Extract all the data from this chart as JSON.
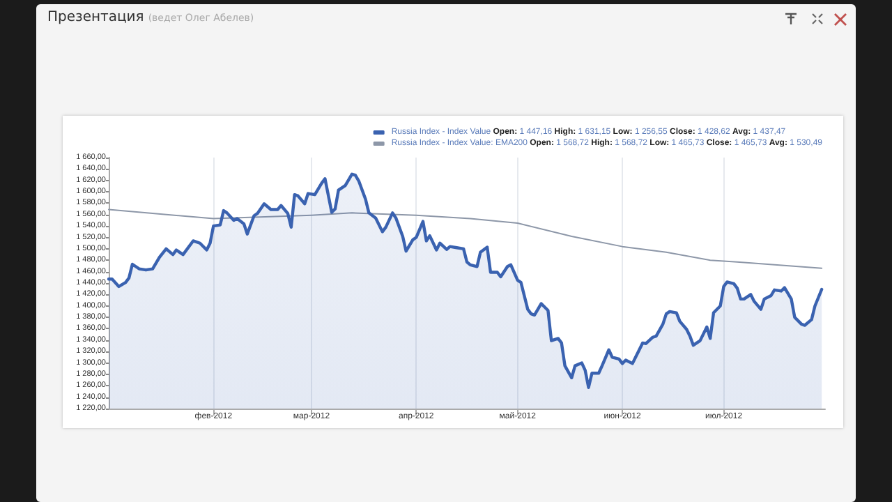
{
  "chart_data": {
    "type": "line",
    "title": "Презентация",
    "subtitle": "(ведет Олег Абелев)",
    "xlim": [
      "2012-01-01",
      "2012-07-31"
    ],
    "xticks": [
      {
        "value": "2012-02-01",
        "label": "фев-2012"
      },
      {
        "value": "2012-03-01",
        "label": "мар-2012"
      },
      {
        "value": "2012-04-01",
        "label": "апр-2012"
      },
      {
        "value": "2012-05-01",
        "label": "май-2012"
      },
      {
        "value": "2012-06-01",
        "label": "июн-2012"
      },
      {
        "value": "2012-07-01",
        "label": "июл-2012"
      }
    ],
    "ylim": [
      1220,
      1660
    ],
    "yticks": [
      {
        "value": 1220,
        "label": "1 220,00"
      },
      {
        "value": 1240,
        "label": "1 240,00"
      },
      {
        "value": 1260,
        "label": "1 260,00"
      },
      {
        "value": 1280,
        "label": "1 280,00"
      },
      {
        "value": 1300,
        "label": "1 300,00"
      },
      {
        "value": 1320,
        "label": "1 320,00"
      },
      {
        "value": 1340,
        "label": "1 340,00"
      },
      {
        "value": 1360,
        "label": "1 360,00"
      },
      {
        "value": 1380,
        "label": "1 380,00"
      },
      {
        "value": 1400,
        "label": "1 400,00"
      },
      {
        "value": 1420,
        "label": "1 420,00"
      },
      {
        "value": 1440,
        "label": "1 440,00"
      },
      {
        "value": 1460,
        "label": "1 460,00"
      },
      {
        "value": 1480,
        "label": "1 480,00"
      },
      {
        "value": 1500,
        "label": "1 500,00"
      },
      {
        "value": 1520,
        "label": "1 520,00"
      },
      {
        "value": 1540,
        "label": "1 540,00"
      },
      {
        "value": 1560,
        "label": "1 560,00"
      },
      {
        "value": 1580,
        "label": "1 580,00"
      },
      {
        "value": 1600,
        "label": "1 600,00"
      },
      {
        "value": 1620,
        "label": "1 620,00"
      },
      {
        "value": 1640,
        "label": "1 640,00"
      },
      {
        "value": 1660,
        "label": "1 660,00"
      }
    ],
    "grid": "x",
    "legend": "top right",
    "marker": "none",
    "annotations": [
      "Open: 1 447,16 High: 1 631,15 Low: 1 256,55 Close: 1 428,62 Avg: 1 437,47",
      "Open: 1 568,72 High: 1 568,72 Low: 1 465,73 Close: 1 465,73 Avg: 1 530,49"
    ],
    "series": [
      {
        "name": "Russia Index - Index Value",
        "type": "area",
        "color": "#3a62b0",
        "x": [
          "2012-01-01",
          "2012-01-02",
          "2012-01-04",
          "2012-01-06",
          "2012-01-07",
          "2012-01-08",
          "2012-01-10",
          "2012-01-12",
          "2012-01-14",
          "2012-01-16",
          "2012-01-18",
          "2012-01-20",
          "2012-01-21",
          "2012-01-23",
          "2012-01-26",
          "2012-01-28",
          "2012-01-30",
          "2012-01-31",
          "2012-02-01",
          "2012-02-03",
          "2012-02-04",
          "2012-02-05",
          "2012-02-07",
          "2012-02-08",
          "2012-02-10",
          "2012-02-11",
          "2012-02-13",
          "2012-02-14",
          "2012-02-16",
          "2012-02-18",
          "2012-02-20",
          "2012-02-21",
          "2012-02-23",
          "2012-02-24",
          "2012-02-25",
          "2012-02-26",
          "2012-02-28",
          "2012-02-29",
          "2012-03-02",
          "2012-03-04",
          "2012-03-05",
          "2012-03-07",
          "2012-03-08",
          "2012-03-09",
          "2012-03-11",
          "2012-03-13",
          "2012-03-14",
          "2012-03-15",
          "2012-03-17",
          "2012-03-18",
          "2012-03-20",
          "2012-03-22",
          "2012-03-23",
          "2012-03-25",
          "2012-03-26",
          "2012-03-28",
          "2012-03-29",
          "2012-03-31",
          "2012-04-01",
          "2012-04-03",
          "2012-04-04",
          "2012-04-05",
          "2012-04-07",
          "2012-04-08",
          "2012-04-10",
          "2012-04-11",
          "2012-04-13",
          "2012-04-15",
          "2012-04-16",
          "2012-04-17",
          "2012-04-19",
          "2012-04-20",
          "2012-04-22",
          "2012-04-23",
          "2012-04-25",
          "2012-04-26",
          "2012-04-28",
          "2012-04-29",
          "2012-05-01",
          "2012-05-02",
          "2012-05-04",
          "2012-05-05",
          "2012-05-06",
          "2012-05-08",
          "2012-05-10",
          "2012-05-11",
          "2012-05-13",
          "2012-05-14",
          "2012-05-15",
          "2012-05-17",
          "2012-05-18",
          "2012-05-20",
          "2012-05-21",
          "2012-05-22",
          "2012-05-23",
          "2012-05-25",
          "2012-05-26",
          "2012-05-28",
          "2012-05-29",
          "2012-05-31",
          "2012-06-01",
          "2012-06-02",
          "2012-06-04",
          "2012-06-05",
          "2012-06-07",
          "2012-06-08",
          "2012-06-10",
          "2012-06-11",
          "2012-06-13",
          "2012-06-14",
          "2012-06-15",
          "2012-06-17",
          "2012-06-18",
          "2012-06-20",
          "2012-06-21",
          "2012-06-22",
          "2012-06-24",
          "2012-06-26",
          "2012-06-27",
          "2012-06-28",
          "2012-06-30",
          "2012-07-01",
          "2012-07-02",
          "2012-07-04",
          "2012-07-05",
          "2012-07-06",
          "2012-07-07",
          "2012-07-09",
          "2012-07-10",
          "2012-07-12",
          "2012-07-13",
          "2012-07-15",
          "2012-07-16",
          "2012-07-18",
          "2012-07-19",
          "2012-07-21",
          "2012-07-22",
          "2012-07-24",
          "2012-07-25",
          "2012-07-27",
          "2012-07-28",
          "2012-07-30"
        ],
        "values": [
          1447,
          1447,
          1434,
          1441,
          1449,
          1473,
          1465,
          1463,
          1465,
          1485,
          1500,
          1490,
          1498,
          1490,
          1514,
          1510,
          1498,
          1510,
          1540,
          1542,
          1567,
          1563,
          1550,
          1553,
          1544,
          1526,
          1558,
          1562,
          1579,
          1569,
          1569,
          1576,
          1562,
          1538,
          1595,
          1593,
          1579,
          1597,
          1595,
          1615,
          1623,
          1564,
          1570,
          1603,
          1611,
          1631,
          1629,
          1619,
          1587,
          1563,
          1554,
          1530,
          1538,
          1563,
          1554,
          1522,
          1496,
          1516,
          1520,
          1548,
          1514,
          1523,
          1498,
          1510,
          1499,
          1504,
          1502,
          1500,
          1477,
          1472,
          1469,
          1494,
          1503,
          1459,
          1459,
          1451,
          1469,
          1472,
          1445,
          1441,
          1394,
          1386,
          1384,
          1404,
          1392,
          1339,
          1343,
          1335,
          1295,
          1274,
          1295,
          1300,
          1287,
          1257,
          1282,
          1282,
          1295,
          1323,
          1310,
          1307,
          1299,
          1305,
          1299,
          1311,
          1335,
          1334,
          1345,
          1347,
          1368,
          1386,
          1390,
          1388,
          1373,
          1359,
          1347,
          1331,
          1339,
          1363,
          1343,
          1388,
          1400,
          1434,
          1442,
          1439,
          1431,
          1412,
          1412,
          1420,
          1408,
          1394,
          1412,
          1418,
          1428,
          1426,
          1432,
          1412,
          1380,
          1368,
          1366,
          1376,
          1400,
          1429
        ]
      },
      {
        "name": "Russia Index - Index Value: EMA200",
        "type": "line",
        "color": "#8d97a8",
        "x": [
          "2012-01-01",
          "2012-02-01",
          "2012-03-01",
          "2012-03-13",
          "2012-04-01",
          "2012-04-17",
          "2012-05-01",
          "2012-05-17",
          "2012-06-01",
          "2012-06-14",
          "2012-06-27",
          "2012-07-05",
          "2012-07-30"
        ],
        "values": [
          1569,
          1553,
          1559,
          1563,
          1559,
          1553,
          1545,
          1522,
          1504,
          1494,
          1480,
          1477,
          1466
        ]
      }
    ]
  }
}
